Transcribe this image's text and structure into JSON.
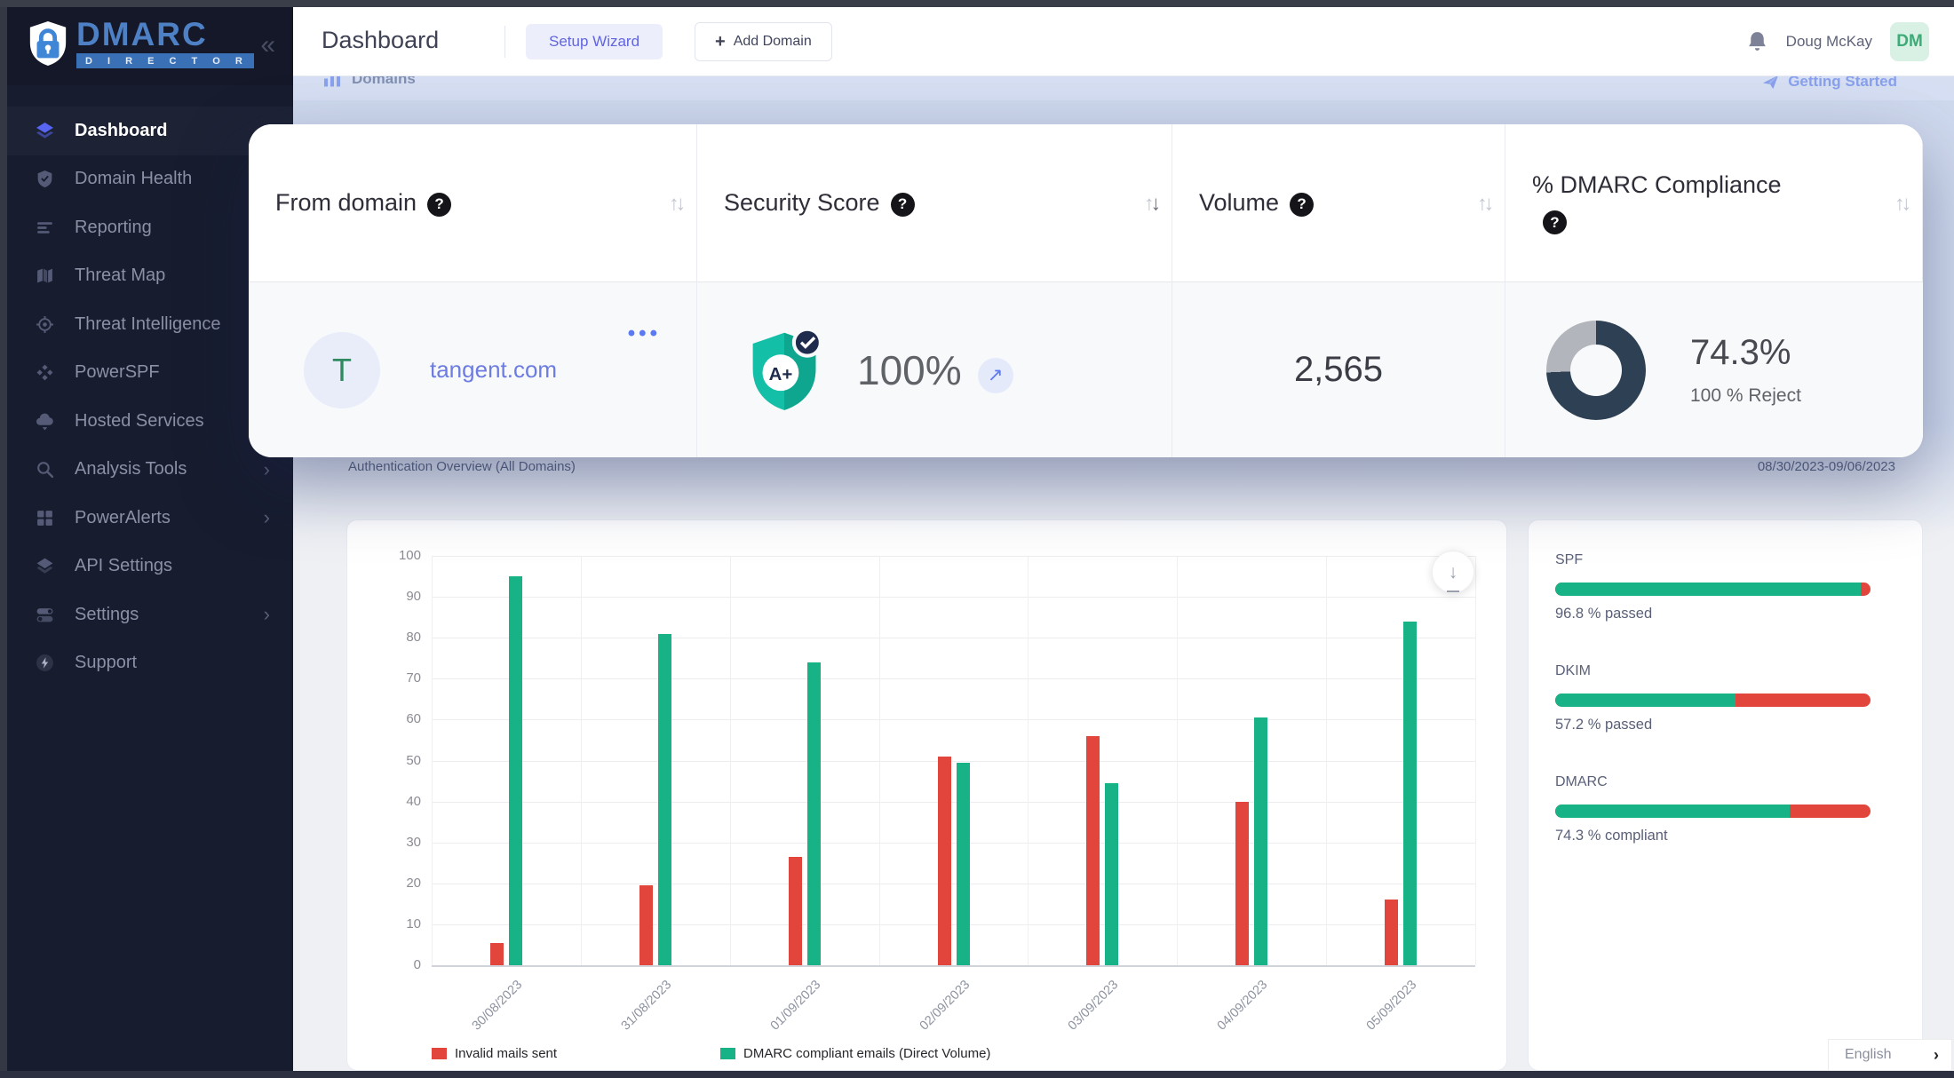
{
  "sidebar": {
    "logo": {
      "title": "DMARC",
      "subtitle": "D I R E C T O R"
    },
    "collapse_glyph": "«",
    "items": [
      {
        "label": "Dashboard",
        "icon": "dashboard",
        "active": true,
        "expandable": false
      },
      {
        "label": "Domain Health",
        "icon": "domain-health",
        "active": false,
        "expandable": false
      },
      {
        "label": "Reporting",
        "icon": "reporting",
        "active": false,
        "expandable": false
      },
      {
        "label": "Threat Map",
        "icon": "threat-map",
        "active": false,
        "expandable": false
      },
      {
        "label": "Threat Intelligence",
        "icon": "threat-intelligence",
        "active": false,
        "expandable": false
      },
      {
        "label": "PowerSPF",
        "icon": "powerspf",
        "active": false,
        "expandable": false
      },
      {
        "label": "Hosted Services",
        "icon": "hosted-services",
        "active": false,
        "expandable": false
      },
      {
        "label": "Analysis Tools",
        "icon": "analysis-tools",
        "active": false,
        "expandable": true
      },
      {
        "label": "PowerAlerts",
        "icon": "poweralerts",
        "active": false,
        "expandable": true
      },
      {
        "label": "API Settings",
        "icon": "api-settings",
        "active": false,
        "expandable": false
      },
      {
        "label": "Settings",
        "icon": "settings",
        "active": false,
        "expandable": true
      },
      {
        "label": "Support",
        "icon": "support",
        "active": false,
        "expandable": false
      }
    ]
  },
  "topbar": {
    "title": "Dashboard",
    "setup_wizard_label": "Setup Wizard",
    "add_domain_label": "Add Domain",
    "user_name": "Doug McKay",
    "user_initials": "DM"
  },
  "page": {
    "domains_section_label": "Domains",
    "getting_started_label": "Getting Started",
    "auth_overview_label": "Authentication Overview (All Domains)",
    "date_range": "08/30/2023-09/06/2023",
    "language": "English"
  },
  "domain_table": {
    "columns": [
      {
        "label": "From domain",
        "sorted": null
      },
      {
        "label": "Security Score",
        "sorted": "desc"
      },
      {
        "label": "Volume",
        "sorted": null
      },
      {
        "label": "% DMARC Compliance",
        "sorted": null
      }
    ],
    "row": {
      "initial": "T",
      "domain": "tangent.com",
      "menu_glyph": "•••",
      "security_grade": "A+",
      "security_score": "100%",
      "trend_glyph": "↗",
      "volume": "2,565",
      "compliance_pct": "74.3%",
      "compliance_value": 74.3,
      "compliance_note": "100 % Reject"
    }
  },
  "auth_summary": [
    {
      "label": "SPF",
      "value": 96.8,
      "text": "96.8 % passed"
    },
    {
      "label": "DKIM",
      "value": 57.2,
      "text": "57.2 % passed"
    },
    {
      "label": "DMARC",
      "value": 74.3,
      "text": "74.3 % compliant"
    }
  ],
  "chart_data": {
    "type": "bar",
    "title": "Authentication Overview (All Domains)",
    "categories": [
      "30/08/2023",
      "31/08/2023",
      "01/09/2023",
      "02/09/2023",
      "03/09/2023",
      "04/09/2023",
      "05/09/2023"
    ],
    "series": [
      {
        "name": "Invalid mails sent",
        "color": "#e2453c",
        "values": [
          5.5,
          19.5,
          26.5,
          51,
          56,
          40,
          16
        ]
      },
      {
        "name": "DMARC compliant emails (Direct Volume)",
        "color": "#17b286",
        "values": [
          95,
          81,
          74,
          49.5,
          44.5,
          60.5,
          84
        ]
      }
    ],
    "xlabel": "",
    "ylabel": "",
    "ylim": [
      0,
      100
    ],
    "ytick_step": 10,
    "grid": true,
    "legend_position": "bottom"
  },
  "colors": {
    "accent_blue": "#5865f2",
    "link_blue": "#6c7ce0",
    "green": "#17b286",
    "red": "#e2453c",
    "donut_navy": "#2e4154",
    "donut_gray": "#b2b6bc",
    "avatar_green": "#3cab77"
  }
}
